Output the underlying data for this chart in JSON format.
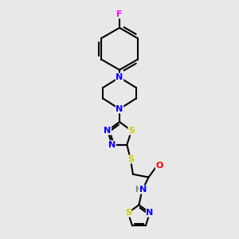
{
  "background_color": "#e8e8e8",
  "atom_colors": {
    "N": "#0000ff",
    "S": "#cccc00",
    "O": "#ff0000",
    "F": "#ff00ff",
    "C": "#000000",
    "H": "#808080"
  },
  "bond_color": "#000000",
  "fig_size": [
    3.0,
    3.0
  ],
  "dpi": 100
}
